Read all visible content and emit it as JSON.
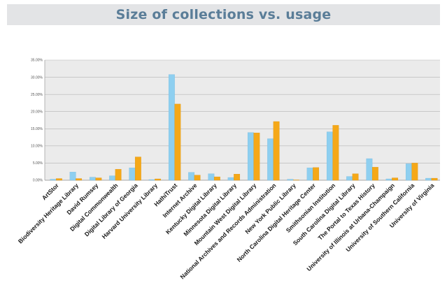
{
  "chart_data": {
    "type": "bar",
    "title": "Size of collections vs. usage",
    "xlabel": "",
    "ylabel": "",
    "ylim": [
      0,
      35
    ],
    "yticks": [
      "0.00%",
      "5.00%",
      "10.00%",
      "15.00%",
      "20.00%",
      "25.00%",
      "30.00%",
      "35.00%"
    ],
    "grid": true,
    "legend": "none",
    "categories": [
      "ArtStor",
      "Biodiversity Heritage Library",
      "David Rumsey",
      "Digital Commonwealth",
      "Digital Library of Georgia",
      "Harvard University Library",
      "HathiTrust",
      "Internet Archive",
      "Kentucky Digital Library",
      "Minnesota Digital Library",
      "Mountain West Digital Library",
      "National Archives and Records Administration",
      "New York Public Library",
      "North Carolina Digital Heritage Center",
      "Smithsonian Institution",
      "South Carolina Digital Library",
      "The Portal to Texas History",
      "University of Illinois at Urbana-Champaign",
      "University of Southern California",
      "University of Virginia"
    ],
    "series": [
      {
        "color": "#8ecff0",
        "values": [
          0.3,
          2.4,
          0.9,
          1.3,
          3.6,
          0.2,
          30.8,
          2.3,
          1.9,
          0.8,
          13.9,
          12.1,
          0.3,
          3.6,
          14.1,
          1.1,
          6.3,
          0.4,
          4.8,
          0.6
        ]
      },
      {
        "color": "#f5a818",
        "values": [
          0.5,
          0.5,
          0.7,
          3.2,
          6.8,
          0.4,
          22.2,
          1.5,
          1.0,
          1.8,
          13.8,
          17.1,
          0.1,
          3.7,
          16.0,
          1.9,
          3.8,
          0.7,
          5.0,
          0.6
        ]
      }
    ]
  }
}
